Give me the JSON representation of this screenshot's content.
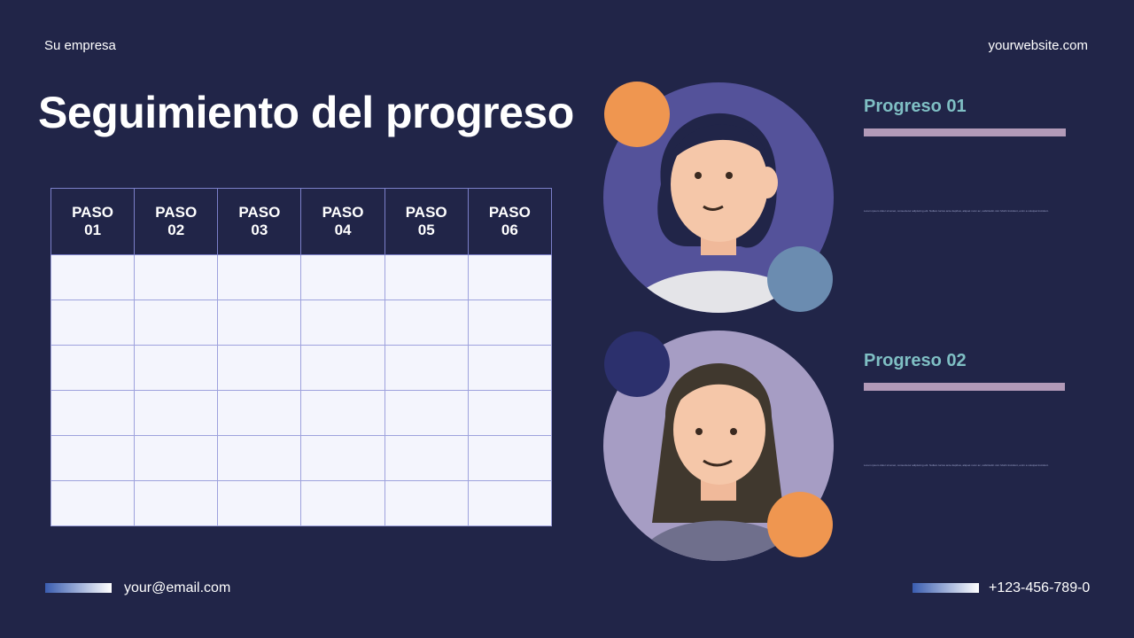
{
  "header": {
    "company": "Su empresa",
    "website": "yourwebsite.com"
  },
  "title": "Seguimiento del progreso",
  "table": {
    "headers": [
      [
        "PASO",
        "01"
      ],
      [
        "PASO",
        "02"
      ],
      [
        "PASO",
        "03"
      ],
      [
        "PASO",
        "04"
      ],
      [
        "PASO",
        "05"
      ],
      [
        "PASO",
        "06"
      ]
    ],
    "row_count": 6
  },
  "progress": [
    {
      "label": "Progreso 01",
      "text": "Lorem ipsum dolor sit amet, consectetur adipiscing elit. Nullam luctus ante dapibus, aliquet nunc ac, sollicitudin nisl. Morbi tincidunt, enim a volutpat tincidunt."
    },
    {
      "label": "Progreso 02",
      "text": "Lorem ipsum dolor sit amet, consectetur adipiscing elit. Nullam luctus ante dapibus, aliquet nunc ac, sollicitudin nisl. Morbi tincidunt, enim a volutpat tincidunt."
    }
  ],
  "footer": {
    "email": "your@email.com",
    "phone": "+123-456-789-0"
  },
  "colors": {
    "background": "#212548",
    "accent_teal": "#7fbfc4",
    "bar": "#b29ab8",
    "orange": "#ef9650",
    "purple": "#54529a"
  }
}
